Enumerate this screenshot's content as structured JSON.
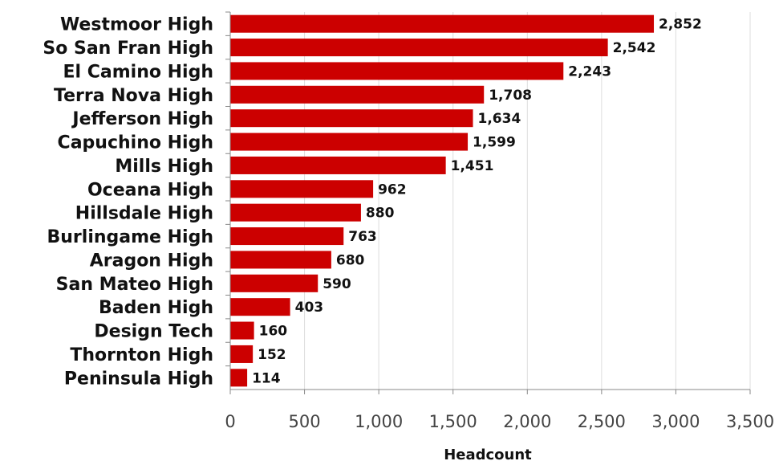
{
  "chart_data": {
    "type": "bar",
    "orientation": "horizontal",
    "categories": [
      "Westmoor High",
      "So San Fran High",
      "El Camino High",
      "Terra Nova High",
      "Jefferson High",
      "Capuchino High",
      "Mills High",
      "Oceana High",
      "Hillsdale High",
      "Burlingame High",
      "Aragon High",
      "San Mateo High",
      "Baden High",
      "Design Tech",
      "Thornton High",
      "Peninsula High"
    ],
    "values": [
      2852,
      2542,
      2243,
      1708,
      1634,
      1599,
      1451,
      962,
      880,
      763,
      680,
      590,
      403,
      160,
      152,
      114
    ],
    "value_labels": [
      "2,852",
      "2,542",
      "2,243",
      "1,708",
      "1,634",
      "1,599",
      "1,451",
      "962",
      "880",
      "763",
      "680",
      "590",
      "403",
      "160",
      "152",
      "114"
    ],
    "x_ticks": [
      0,
      500,
      1000,
      1500,
      2000,
      2500,
      3000,
      3500
    ],
    "x_tick_labels": [
      "0",
      "500",
      "1,000",
      "1,500",
      "2,000",
      "2,500",
      "3,000",
      "3,500"
    ],
    "xlim": [
      0,
      3500
    ],
    "xlabel": "Headcount",
    "ylabel": "",
    "title": "",
    "grid": "vertical",
    "bar_color": "#cc0000",
    "grid_color": "#dddddd",
    "axis_color": "#888888"
  }
}
